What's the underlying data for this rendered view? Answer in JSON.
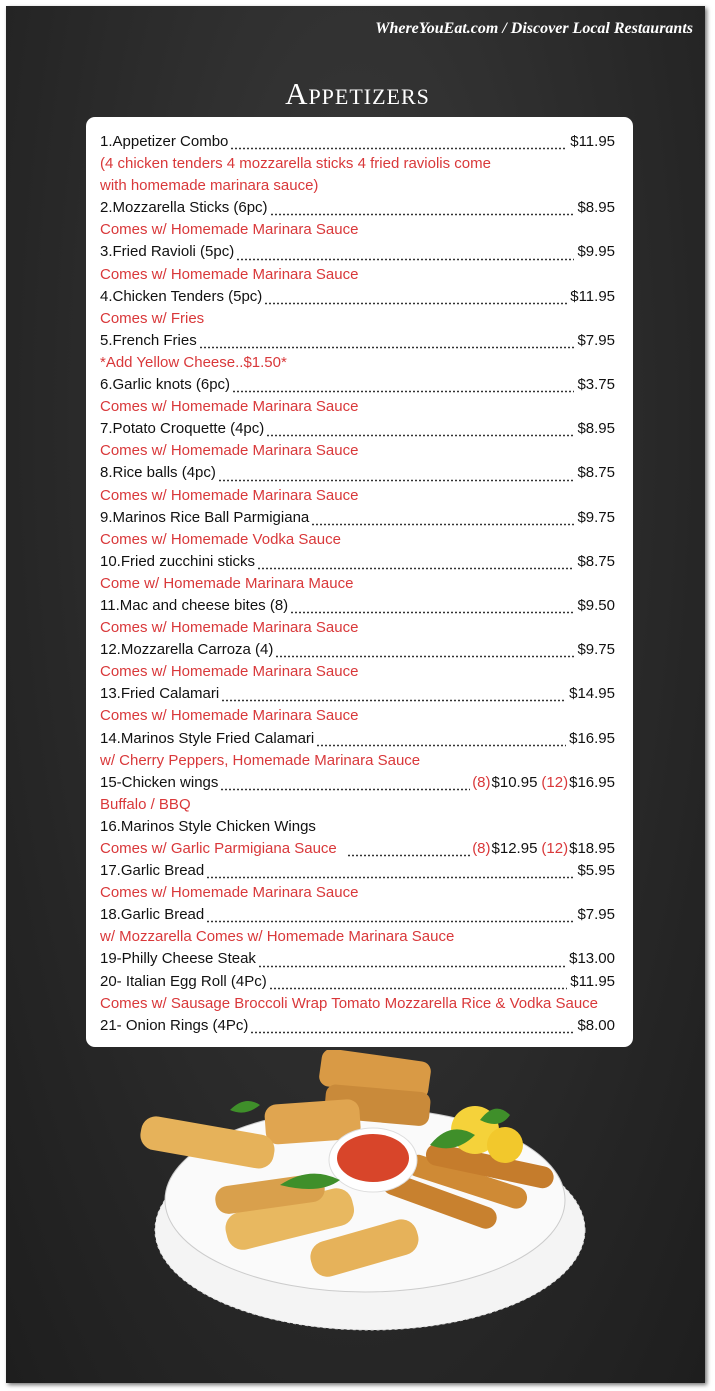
{
  "header": {
    "site": "WhereYouEat.com / Discover Local Restaurants",
    "title": "Appetizers"
  },
  "items": [
    {
      "name": "1.Appetizer Combo",
      "price": "$11.95",
      "note": [
        "(4 chicken tenders 4 mozzarella sticks 4 fried raviolis come",
        "with homemade marinara sauce)"
      ]
    },
    {
      "name": "2.Mozzarella Sticks (6pc)",
      "price": "$8.95",
      "note": "Comes w/ Homemade Marinara Sauce"
    },
    {
      "name": "3.Fried Ravioli (5pc)",
      "price": "$9.95",
      "note": "Comes w/ Homemade Marinara Sauce"
    },
    {
      "name": "4.Chicken Tenders (5pc)",
      "price": "$11.95",
      "note": "Comes w/ Fries"
    },
    {
      "name": "5.French Fries",
      "price": "$7.95",
      "note": "*Add Yellow Cheese..$1.50*"
    },
    {
      "name": "6.Garlic knots (6pc)",
      "price": "$3.75",
      "note": "Comes w/ Homemade Marinara Sauce"
    },
    {
      "name": "7.Potato Croquette (4pc)",
      "price": "$8.95",
      "note": "Comes w/ Homemade Marinara Sauce"
    },
    {
      "name": "8.Rice balls (4pc)",
      "price": "$8.75",
      "note": "Comes w/ Homemade Marinara Sauce"
    },
    {
      "name": "9.Marinos Rice Ball Parmigiana",
      "price": "$9.75",
      "note": "Comes w/ Homemade Vodka Sauce"
    },
    {
      "name": "10.Fried zucchini sticks",
      "price": "$8.75",
      "note": "Come w/ Homemade Marinara Mauce"
    },
    {
      "name": "11.Mac and cheese bites (8)",
      "price": "$9.50",
      "note": "Comes w/ Homemade Marinara Sauce"
    },
    {
      "name": "12.Mozzarella Carroza (4)",
      "price": "$9.75",
      "note": "Comes w/ Homemade Marinara Sauce"
    },
    {
      "name": "13.Fried Calamari",
      "price": "$14.95",
      "note": "Comes w/ Homemade Marinara Sauce"
    },
    {
      "name": "14.Marinos Style Fried Calamari",
      "price": "$16.95",
      "note": "w/ Cherry Peppers, Homemade Marinara Sauce"
    },
    {
      "name": "15-Chicken wings",
      "prices": [
        {
          "size": "(8)",
          "price": "$10.95"
        },
        {
          "size": "(12)",
          "price": "$16.95"
        }
      ],
      "note": "Buffalo / BBQ"
    },
    {
      "name": "16.Marinos Style Chicken Wings",
      "note": {
        "text": "Comes w/ Garlic Parmigiana Sauce",
        "prices": [
          {
            "size": "(8)",
            "price": "$12.95"
          },
          {
            "size": "(12)",
            "price": "$18.95"
          }
        ]
      }
    },
    {
      "name": "17.Garlic Bread",
      "price": "$5.95",
      "note": "Comes w/ Homemade Marinara Sauce"
    },
    {
      "name": "18.Garlic Bread",
      "price": "$7.95",
      "note": "w/ Mozzarella Comes w/ Homemade Marinara Sauce"
    },
    {
      "name": "19-Philly Cheese Steak",
      "price": "$13.00"
    },
    {
      "name": "20- Italian Egg Roll (4Pc)",
      "price": "$11.95",
      "note": "Comes w/ Sausage Broccoli Wrap Tomato Mozzarella Rice & Vodka Sauce"
    },
    {
      "name": "21- Onion Rings (4Pc)",
      "price": "$8.00"
    }
  ]
}
